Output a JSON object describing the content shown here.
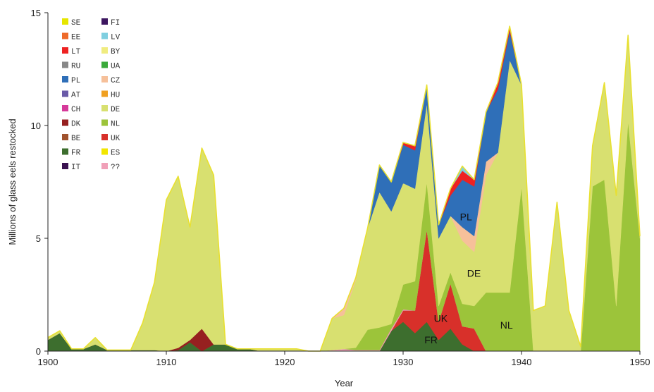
{
  "chart_data": {
    "type": "area",
    "stacked": true,
    "title": "",
    "xlabel": "Year",
    "ylabel": "Millions of glass eels restocked",
    "xlim": [
      1900,
      1950
    ],
    "ylim": [
      0,
      15
    ],
    "x_ticks": [
      1900,
      1910,
      1920,
      1930,
      1940,
      1950
    ],
    "y_ticks": [
      0,
      5,
      10,
      15
    ],
    "grid": false,
    "legend_position": "top-left",
    "legend": [
      {
        "code": "SE",
        "color": "#e6e600"
      },
      {
        "code": "FI",
        "color": "#3d1660"
      },
      {
        "code": "EE",
        "color": "#ee6a2a"
      },
      {
        "code": "LV",
        "color": "#7fcfe0"
      },
      {
        "code": "LT",
        "color": "#ee2222"
      },
      {
        "code": "BY",
        "color": "#f0ec80"
      },
      {
        "code": "RU",
        "color": "#888888"
      },
      {
        "code": "UA",
        "color": "#3aaa3a"
      },
      {
        "code": "PL",
        "color": "#2f6fb8"
      },
      {
        "code": "CZ",
        "color": "#f6c09a"
      },
      {
        "code": "AT",
        "color": "#6a5aa8"
      },
      {
        "code": "HU",
        "color": "#f0a020"
      },
      {
        "code": "CH",
        "color": "#d63a9a"
      },
      {
        "code": "DE",
        "color": "#d8e070"
      },
      {
        "code": "DK",
        "color": "#962020"
      },
      {
        "code": "NL",
        "color": "#9cc43a"
      },
      {
        "code": "BE",
        "color": "#a0522d"
      },
      {
        "code": "UK",
        "color": "#d8302a"
      },
      {
        "code": "FR",
        "color": "#3d6e2e"
      },
      {
        "code": "ES",
        "color": "#f2e600"
      },
      {
        "code": "IT",
        "color": "#3a1250"
      },
      {
        "code": "??",
        "color": "#f0a0b8"
      }
    ],
    "annotations": [
      "PL",
      "DE",
      "UK",
      "FR",
      "NL"
    ],
    "x": [
      1900,
      1901,
      1902,
      1903,
      1904,
      1905,
      1906,
      1907,
      1908,
      1909,
      1910,
      1911,
      1912,
      1913,
      1914,
      1915,
      1916,
      1917,
      1918,
      1919,
      1920,
      1921,
      1922,
      1923,
      1924,
      1925,
      1926,
      1927,
      1928,
      1929,
      1930,
      1931,
      1932,
      1933,
      1934,
      1935,
      1936,
      1937,
      1938,
      1939,
      1940,
      1941,
      1942,
      1943,
      1944,
      1945,
      1946,
      1947,
      1948,
      1949,
      1950
    ],
    "series": [
      {
        "name": "FR",
        "color": "#3d6e2e",
        "values": [
          0.5,
          0.8,
          0.1,
          0.1,
          0.3,
          0.05,
          0.05,
          0.05,
          0.05,
          0.05,
          0,
          0.05,
          0.4,
          0,
          0.3,
          0.3,
          0.1,
          0.1,
          0,
          0,
          0,
          0,
          0,
          0,
          0,
          0,
          0,
          0,
          0,
          0.9,
          1.3,
          0.8,
          1.3,
          0.5,
          1.0,
          0.3,
          0,
          0,
          0,
          0,
          0,
          0,
          0,
          0,
          0,
          0,
          0,
          0,
          0,
          0,
          0
        ]
      },
      {
        "name": "UK",
        "color": "#d8302a",
        "values": [
          0,
          0,
          0,
          0,
          0,
          0,
          0,
          0,
          0,
          0,
          0,
          0,
          0,
          0,
          0,
          0,
          0,
          0,
          0,
          0,
          0,
          0,
          0,
          0,
          0,
          0,
          0,
          0,
          0,
          0,
          0.5,
          1.0,
          4.1,
          0.8,
          2.0,
          0.8,
          1.0,
          0,
          0,
          0,
          0,
          0,
          0,
          0,
          0,
          0,
          0,
          0,
          0,
          0,
          0
        ]
      },
      {
        "name": "DK",
        "color": "#962020",
        "values": [
          0,
          0,
          0,
          0,
          0,
          0,
          0,
          0,
          0,
          0,
          0,
          0.1,
          0.1,
          1.0,
          0,
          0,
          0,
          0,
          0,
          0,
          0,
          0,
          0,
          0,
          0,
          0,
          0,
          0,
          0,
          0,
          0,
          0,
          0,
          0,
          0,
          0,
          0,
          0,
          0,
          0,
          0,
          0,
          0,
          0,
          0,
          0,
          0,
          0,
          0,
          0,
          0
        ]
      },
      {
        "name": "??",
        "color": "#f0a0b8",
        "values": [
          0,
          0,
          0,
          0,
          0,
          0,
          0,
          0,
          0,
          0,
          0,
          0,
          0,
          0,
          0,
          0,
          0,
          0,
          0,
          0,
          0,
          0,
          0,
          0,
          0.05,
          0.1,
          0.05,
          0.05,
          0.05,
          0.1,
          0.05,
          0,
          0,
          0,
          0,
          0,
          0,
          0,
          0,
          0,
          0,
          0,
          0,
          0,
          0,
          0,
          0,
          0,
          0,
          0,
          0
        ]
      },
      {
        "name": "NL",
        "color": "#9cc43a",
        "values": [
          0,
          0,
          0,
          0,
          0,
          0,
          0,
          0,
          0,
          0,
          0,
          0,
          0,
          0,
          0,
          0,
          0,
          0,
          0,
          0,
          0,
          0,
          0,
          0,
          0,
          0,
          0.1,
          0.9,
          1.0,
          0.2,
          1.1,
          1.3,
          2.1,
          0.7,
          0.5,
          1.0,
          1.0,
          2.6,
          2.6,
          2.6,
          7.3,
          0,
          0,
          0,
          0,
          0,
          7.3,
          7.6,
          2.0,
          10.2,
          5.0
        ]
      },
      {
        "name": "DE",
        "color": "#d8e070",
        "values": [
          0.1,
          0.1,
          0,
          0,
          0.3,
          0,
          0,
          0,
          1.2,
          3.0,
          6.7,
          7.6,
          5.0,
          8.0,
          7.5,
          0,
          0,
          0,
          0.1,
          0.1,
          0.1,
          0.1,
          0,
          0,
          1.4,
          1.5,
          3.0,
          4.5,
          6.0,
          5.0,
          4.5,
          4.1,
          3.5,
          3.0,
          2.5,
          2.8,
          2.4,
          5.2,
          6.2,
          10.3,
          4.5,
          1.8,
          2.0,
          6.6,
          1.8,
          0.2,
          1.8,
          4.3,
          4.9,
          3.8,
          0.1
        ]
      },
      {
        "name": "CZ",
        "color": "#f6c09a",
        "values": [
          0,
          0,
          0,
          0,
          0,
          0,
          0,
          0,
          0,
          0,
          0,
          0,
          0,
          0,
          0,
          0,
          0,
          0,
          0,
          0,
          0,
          0,
          0,
          0,
          0,
          0.3,
          0.1,
          0,
          0,
          0,
          0,
          0,
          0,
          0,
          0,
          0.6,
          0.7,
          0.6,
          0,
          0,
          0,
          0,
          0,
          0,
          0,
          0,
          0,
          0,
          0,
          0,
          0
        ]
      },
      {
        "name": "PL",
        "color": "#2f6fb8",
        "values": [
          0,
          0,
          0,
          0,
          0,
          0,
          0,
          0,
          0,
          0,
          0,
          0,
          0,
          0,
          0,
          0,
          0,
          0,
          0,
          0,
          0,
          0,
          0,
          0,
          0,
          0,
          0,
          0,
          1.2,
          1.3,
          1.7,
          1.7,
          0.8,
          0.6,
          0.9,
          2.1,
          2.2,
          2.2,
          2.8,
          1.3,
          0,
          0,
          0,
          0,
          0,
          0,
          0,
          0,
          0,
          0,
          0
        ]
      },
      {
        "name": "LT",
        "color": "#ee2222",
        "values": [
          0,
          0,
          0,
          0,
          0,
          0,
          0,
          0,
          0,
          0,
          0,
          0,
          0,
          0,
          0,
          0,
          0,
          0,
          0,
          0,
          0,
          0,
          0,
          0,
          0,
          0,
          0,
          0,
          0,
          0,
          0.1,
          0.2,
          0,
          0,
          0.3,
          0.4,
          0.3,
          0,
          0.3,
          0.2,
          0,
          0,
          0,
          0,
          0,
          0,
          0,
          0,
          0,
          0,
          0
        ]
      },
      {
        "name": "LV",
        "color": "#7fcfe0",
        "values": [
          0,
          0,
          0,
          0,
          0,
          0,
          0,
          0,
          0,
          0,
          0,
          0,
          0,
          0,
          0,
          0,
          0,
          0,
          0,
          0,
          0,
          0,
          0,
          0,
          0,
          0,
          0,
          0,
          0,
          0,
          0,
          0,
          0,
          0,
          0,
          0.2,
          0,
          0,
          0,
          0,
          0,
          0,
          0,
          0,
          0,
          0,
          0,
          0,
          0,
          0,
          0
        ]
      },
      {
        "name": "SE",
        "color": "#e6e600",
        "values": [
          0,
          0,
          0,
          0,
          0,
          0,
          0,
          0,
          0,
          0,
          0,
          0,
          0,
          0,
          0,
          0,
          0,
          0,
          0,
          0,
          0,
          0,
          0,
          0,
          0,
          0,
          0,
          0,
          0,
          0,
          0,
          0,
          0,
          0,
          0,
          0,
          0,
          0,
          0,
          0,
          0,
          0,
          0,
          0,
          0,
          0,
          0,
          0,
          0,
          0,
          0
        ]
      }
    ]
  }
}
